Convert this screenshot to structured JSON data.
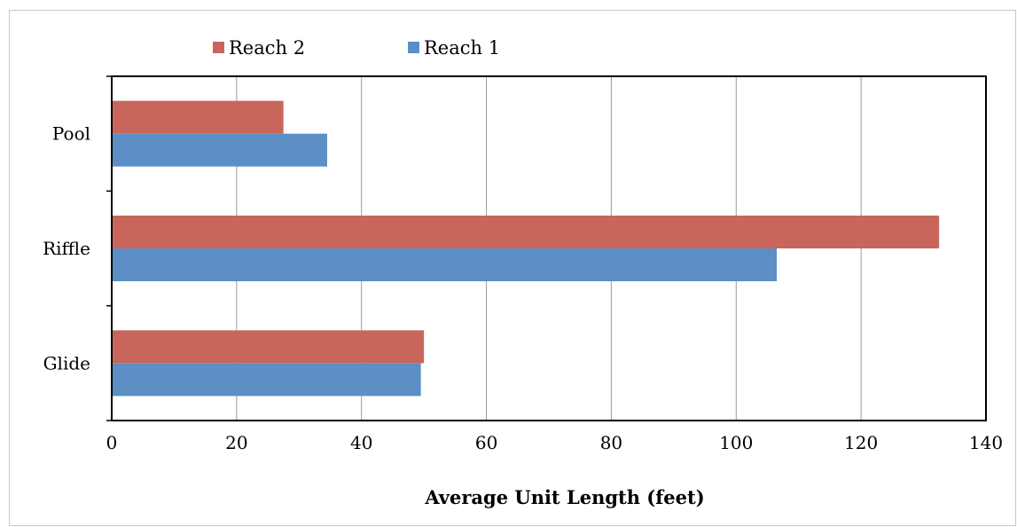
{
  "chart_data": {
    "type": "bar",
    "orientation": "horizontal",
    "categories": [
      "Pool",
      "Riffle",
      "Glide"
    ],
    "series": [
      {
        "name": "Reach 2",
        "color": "#c9665c",
        "values": [
          27.5,
          132.5,
          50
        ]
      },
      {
        "name": "Reach 1",
        "color": "#5b8fc5",
        "values": [
          34.5,
          106.5,
          49.5
        ]
      }
    ],
    "xlabel": "Average Unit Length (feet)",
    "ylabel": "",
    "xlim": [
      0,
      140
    ],
    "xticks": [
      "0",
      "20",
      "40",
      "60",
      "80",
      "100",
      "120",
      "140"
    ],
    "grid": "vertical",
    "legend": "top-left"
  }
}
